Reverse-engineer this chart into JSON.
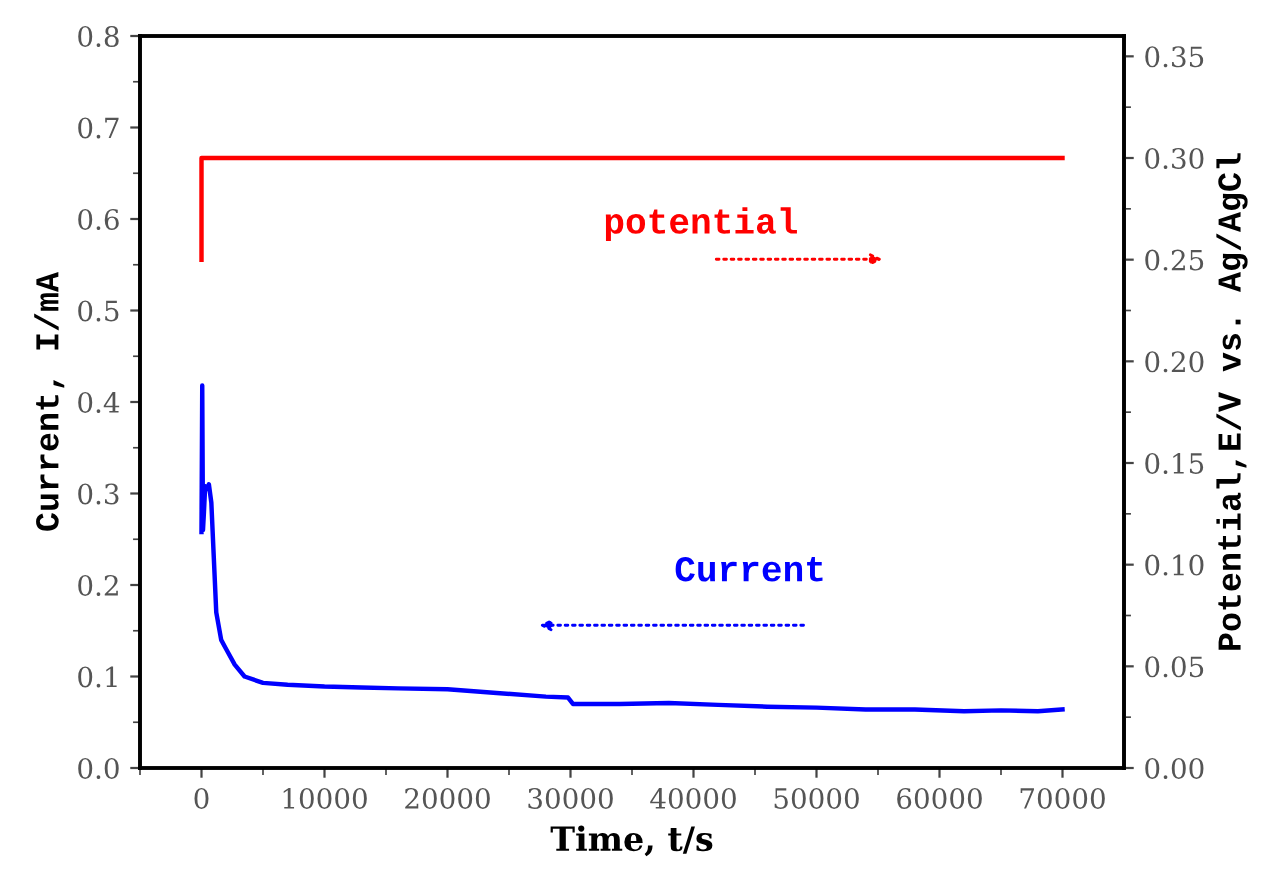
{
  "chart_data": {
    "type": "line",
    "xlabel": "Time, t/s",
    "ylabel": "Current, I/mA",
    "y2label": "Potential,E/V vs. Ag/AgCl",
    "xlim": [
      -5000,
      75000
    ],
    "xticks": [
      {
        "value": -5000,
        "label": null
      },
      0,
      {
        "value": 5000,
        "label": null
      },
      10000,
      {
        "value": 15000,
        "label": null
      },
      20000,
      {
        "value": 25000,
        "label": null
      },
      30000,
      {
        "value": 35000,
        "label": null
      },
      40000,
      {
        "value": 45000,
        "label": null
      },
      50000,
      {
        "value": 55000,
        "label": null
      },
      60000,
      {
        "value": 65000,
        "label": null
      },
      70000
    ],
    "ylim": [
      0,
      0.8
    ],
    "yticks": [
      {
        "value": 0,
        "label": "0.0"
      },
      {
        "value": 0.05,
        "label": null
      },
      0.1,
      {
        "value": 0.15,
        "label": null
      },
      0.2,
      {
        "value": 0.25,
        "label": null
      },
      0.3,
      {
        "value": 0.35,
        "label": null
      },
      0.4,
      {
        "value": 0.45,
        "label": null
      },
      0.5,
      {
        "value": 0.55,
        "label": null
      },
      0.6,
      {
        "value": 0.65,
        "label": null
      },
      0.7,
      {
        "value": 0.75,
        "label": null
      },
      0.8
    ],
    "y2lim": [
      0,
      0.36
    ],
    "y2ticks": [
      {
        "value": 0,
        "label": "0.00"
      },
      {
        "value": 0.025,
        "label": null
      },
      {
        "value": 0.05,
        "label": "0.05"
      },
      {
        "value": 0.075,
        "label": null
      },
      {
        "value": 0.1,
        "label": "0.10"
      },
      {
        "value": 0.125,
        "label": null
      },
      {
        "value": 0.15,
        "label": "0.15"
      },
      {
        "value": 0.175,
        "label": null
      },
      {
        "value": 0.2,
        "label": "0.20"
      },
      {
        "value": 0.225,
        "label": null
      },
      {
        "value": 0.25,
        "label": "0.25"
      },
      {
        "value": 0.275,
        "label": null
      },
      {
        "value": 0.3,
        "label": "0.30"
      },
      {
        "value": 0.325,
        "label": null
      },
      {
        "value": 0.35,
        "label": "0.35"
      }
    ],
    "grid": false,
    "legend": false,
    "marker": "none",
    "line_style": "solid",
    "series": [
      {
        "name": "Current",
        "color": "#0000ff",
        "axis": "y",
        "x": [
          0,
          60,
          120,
          200,
          300,
          450,
          600,
          800,
          1000,
          1200,
          1600,
          2000,
          2700,
          3500,
          5000,
          7000,
          10000,
          13000,
          16000,
          20000,
          24000,
          28000,
          29800,
          30200,
          34000,
          38000,
          42000,
          46000,
          50000,
          54000,
          58000,
          62000,
          65000,
          68000,
          70000
        ],
        "values": [
          0.258,
          0.418,
          0.26,
          0.28,
          0.308,
          0.305,
          0.31,
          0.29,
          0.23,
          0.17,
          0.14,
          0.13,
          0.113,
          0.1,
          0.093,
          0.091,
          0.089,
          0.088,
          0.087,
          0.086,
          0.082,
          0.078,
          0.077,
          0.07,
          0.07,
          0.071,
          0.069,
          0.067,
          0.066,
          0.064,
          0.064,
          0.062,
          0.063,
          0.062,
          0.064
        ]
      },
      {
        "name": "potential",
        "color": "#ff0000",
        "axis": "y2",
        "x": [
          0,
          0,
          70000
        ],
        "values": [
          0.25,
          0.3,
          0.3
        ]
      }
    ]
  }
}
